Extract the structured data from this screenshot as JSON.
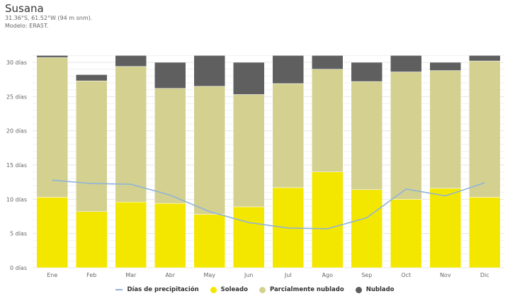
{
  "header": {
    "title": "Susana",
    "coords": "31.36°S, 61.52°W (94 m snm).",
    "model": "Modelo: ERA5T."
  },
  "colors": {
    "sunny": "#f3e700",
    "partly": "#d4d190",
    "overcast": "#5f5f5f",
    "precip": "#8fb3d9",
    "grid": "#e9e9e9"
  },
  "chart_data": {
    "type": "bar",
    "stacked": true,
    "categories": [
      "Ene",
      "Feb",
      "Mar",
      "Abr",
      "May",
      "Jun",
      "Jul",
      "Ago",
      "Sep",
      "Oct",
      "Nov",
      "Dic"
    ],
    "series": [
      {
        "name": "Soleado",
        "type": "bar",
        "values": [
          10.3,
          8.2,
          9.6,
          9.4,
          7.8,
          8.9,
          11.7,
          14.0,
          11.4,
          10.0,
          11.6,
          10.3
        ]
      },
      {
        "name": "Parcialmente nublado",
        "type": "bar",
        "values": [
          20.4,
          19.1,
          19.8,
          16.8,
          18.7,
          16.4,
          15.2,
          15.0,
          15.8,
          18.6,
          17.2,
          19.9
        ]
      },
      {
        "name": "Nublado",
        "type": "bar",
        "values": [
          0.3,
          0.9,
          1.6,
          3.8,
          4.5,
          4.7,
          4.1,
          2.0,
          2.8,
          2.4,
          1.2,
          0.8
        ]
      },
      {
        "name": "Días de precipitación",
        "type": "line",
        "values": [
          12.8,
          12.3,
          12.2,
          10.6,
          8.2,
          6.6,
          5.8,
          5.7,
          7.3,
          11.5,
          10.5,
          12.4
        ]
      }
    ],
    "ylim": [
      0,
      31
    ],
    "yticks": [
      0,
      5,
      10,
      15,
      20,
      25,
      30
    ],
    "ytick_labels": [
      "0 días",
      "5 días",
      "10 días",
      "15 días",
      "20 días",
      "25 días",
      "30 días"
    ],
    "grid": true,
    "legend_position": "bottom",
    "legend": [
      "Días de precipitación",
      "Soleado",
      "Parcialmente nublado",
      "Nublado"
    ]
  }
}
